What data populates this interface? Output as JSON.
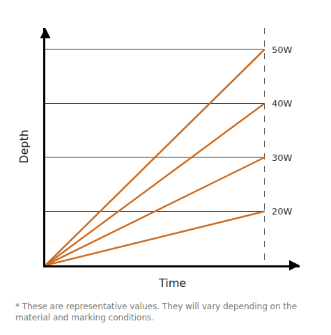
{
  "chart_data": {
    "type": "line",
    "x_label": "Time",
    "y_label": "Depth",
    "annotations": [
      "* These are representative values. They will vary depending on the material and marking conditions."
    ],
    "x": [
      0,
      1
    ],
    "series": [
      {
        "name": "20W",
        "color": "#cc6b1f",
        "values": [
          0,
          1
        ]
      },
      {
        "name": "30W",
        "color": "#cc6b1f",
        "values": [
          0,
          2
        ]
      },
      {
        "name": "40W",
        "color": "#cc6b1f",
        "values": [
          0,
          3
        ]
      },
      {
        "name": "50W",
        "color": "#cc6b1f",
        "values": [
          0,
          4
        ]
      }
    ],
    "xlim": [
      0,
      1.16
    ],
    "xticks": [
      1
    ],
    "ylim": [
      0,
      4.4
    ],
    "yticks": [
      1,
      2,
      3,
      4
    ],
    "grid": true,
    "tick_labels": false
  }
}
